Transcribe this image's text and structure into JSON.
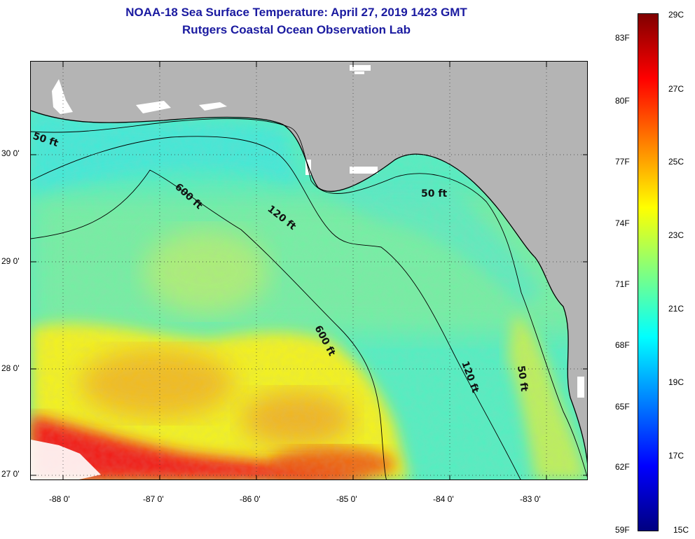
{
  "header": {
    "title": "NOAA-18 Sea Surface Temperature:  April 27, 2019 1423 GMT",
    "subtitle": "Rutgers Coastal Ocean Observation Lab"
  },
  "map": {
    "lon_range": [
      -88.35,
      -82.55
    ],
    "lat_range": [
      26.95,
      30.85
    ],
    "lon_ticks": [
      "-88 0'",
      "-87 0'",
      "-86 0'",
      "-85 0'",
      "-84 0'",
      "-83 0'"
    ],
    "lat_ticks": [
      "30 0'",
      "29 0'",
      "28 0'",
      "27 0'"
    ],
    "land_color": "#b4b4b4",
    "isobaths": [
      {
        "label": "50 ft",
        "rot": 18
      },
      {
        "label": "600 ft",
        "rot": 42
      },
      {
        "label": "120 ft",
        "rot": 38
      },
      {
        "label": "50 ft",
        "rot": 0
      },
      {
        "label": "600 ft",
        "rot": 62
      },
      {
        "label": "120 ft",
        "rot": 70
      },
      {
        "label": "50 ft",
        "rot": 82
      }
    ]
  },
  "colorbar": {
    "min_c": 15,
    "max_c": 29,
    "celsius_labels": [
      "29C",
      "27C",
      "25C",
      "23C",
      "21C",
      "19C",
      "17C",
      "15C"
    ],
    "fahrenheit_labels": [
      "83F",
      "80F",
      "77F",
      "74F",
      "71F",
      "68F",
      "65F",
      "62F",
      "59F"
    ],
    "gradient_colors": [
      "#800000",
      "#ff0000",
      "#ff8000",
      "#ffff00",
      "#80ff80",
      "#00ffff",
      "#0080ff",
      "#0000ff",
      "#000080"
    ]
  }
}
